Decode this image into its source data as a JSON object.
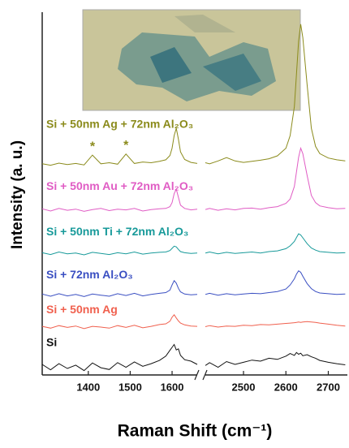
{
  "chart_data": {
    "type": "line",
    "x_label": "Raman Shift (cm⁻¹)",
    "y_label": "Intensity (a. u.)",
    "xlim": [
      1290,
      2745
    ],
    "x_break": [
      1660,
      2410
    ],
    "xticks": [
      1400,
      1500,
      1600,
      2500,
      2600,
      2700
    ],
    "ylim": [
      0,
      100
    ],
    "annotations": [
      {
        "text": "*"
      },
      {
        "text": "*"
      }
    ],
    "x": [
      1290,
      1310,
      1330,
      1350,
      1370,
      1390,
      1410,
      1430,
      1450,
      1470,
      1490,
      1510,
      1530,
      1550,
      1570,
      1585,
      1595,
      1600,
      1605,
      1610,
      1615,
      1620,
      1630,
      1645,
      1660,
      2410,
      2420,
      2440,
      2460,
      2480,
      2500,
      2520,
      2540,
      2560,
      2580,
      2600,
      2610,
      2620,
      2625,
      2630,
      2635,
      2640,
      2650,
      2660,
      2670,
      2680,
      2700,
      2720,
      2740
    ],
    "series": [
      {
        "name": "Si + 50nm Ag + 72nm Al₂O₃",
        "color": "#8b8b1c",
        "values": [
          58.2,
          57.8,
          58.4,
          58.0,
          58.3,
          57.9,
          60.6,
          58.2,
          58.5,
          58.1,
          60.9,
          58.3,
          58.7,
          58.5,
          58.9,
          59.3,
          60.5,
          62.5,
          66,
          68,
          65,
          61.5,
          59.4,
          58.6,
          58.3,
          58.5,
          58.2,
          59.0,
          59.9,
          59.0,
          58.6,
          58.9,
          59.2,
          59.6,
          60.4,
          62.5,
          66,
          74,
          83,
          92,
          96.7,
          93,
          80,
          68,
          63,
          61,
          59.8,
          59.3,
          59.0
        ]
      },
      {
        "name": "Si + 50nm Au + 72nm Al₂O₃",
        "color": "#e05cc4",
        "values": [
          45.8,
          45.2,
          45.9,
          45.4,
          45.7,
          45.1,
          45.6,
          45.9,
          45.3,
          45.7,
          45.5,
          45.9,
          45.2,
          45.6,
          45.8,
          45.9,
          46.4,
          47.5,
          50,
          51.2,
          49,
          46.8,
          45.9,
          45.5,
          45.7,
          45.6,
          45.9,
          45.4,
          45.8,
          45.5,
          45.9,
          46.0,
          45.7,
          46.1,
          46.4,
          47.3,
          48.5,
          52,
          56,
          60,
          62.5,
          61,
          55,
          49.5,
          47.5,
          46.6,
          46.1,
          45.8,
          45.9
        ]
      },
      {
        "name": "Si + 50nm Ti + 72nm Al₂O₃",
        "color": "#189a9a",
        "values": [
          33.7,
          33.2,
          33.9,
          33.4,
          33.6,
          33.1,
          33.8,
          33.5,
          33.2,
          33.7,
          33.4,
          33.9,
          33.3,
          33.6,
          33.8,
          33.9,
          34.3,
          34.9,
          35.5,
          35.3,
          34.6,
          34.0,
          33.7,
          33.5,
          33.6,
          33.6,
          33.9,
          33.4,
          33.8,
          33.5,
          33.7,
          33.9,
          33.6,
          34.0,
          34.2,
          34.8,
          35.6,
          36.8,
          37.9,
          38.9,
          38.6,
          37.8,
          36.2,
          35.0,
          34.4,
          34.0,
          33.8,
          33.6,
          33.7
        ]
      },
      {
        "name": "Si + 72nm Al₂O₃",
        "color": "#3a4fc2",
        "values": [
          22.3,
          21.7,
          22.4,
          21.8,
          22.2,
          21.6,
          22.3,
          22.0,
          21.7,
          22.4,
          21.9,
          22.5,
          21.8,
          22.2,
          22.5,
          22.7,
          23.4,
          24.8,
          26,
          25.3,
          23.9,
          22.9,
          22.3,
          22.1,
          22.2,
          22.2,
          22.5,
          22.0,
          22.4,
          22.1,
          22.3,
          22.5,
          22.4,
          22.7,
          23.0,
          23.7,
          24.8,
          26.5,
          27.8,
          28.7,
          28.3,
          27.2,
          25.2,
          23.8,
          23.0,
          22.6,
          22.4,
          22.2,
          22.3
        ]
      },
      {
        "name": "Si + 50nm Ag",
        "color": "#f0604e",
        "values": [
          13.4,
          12.9,
          13.6,
          13.1,
          13.5,
          12.8,
          13.4,
          13.2,
          12.9,
          13.6,
          13.1,
          13.7,
          13.0,
          13.4,
          13.9,
          14.1,
          14.8,
          15.9,
          16.6,
          15.7,
          14.9,
          14.3,
          13.8,
          13.5,
          13.4,
          13.3,
          13.6,
          13.2,
          13.5,
          13.4,
          13.7,
          13.6,
          13.9,
          13.8,
          14.0,
          14.2,
          14.3,
          14.4,
          14.5,
          14.6,
          14.5,
          14.6,
          14.7,
          14.6,
          14.5,
          14.3,
          14.0,
          13.7,
          13.5
        ]
      },
      {
        "name": "Si",
        "color": "#111111",
        "values": [
          2.9,
          1.4,
          3.1,
          1.8,
          2.7,
          1.2,
          3.3,
          2.0,
          1.5,
          3.4,
          2.1,
          3.6,
          2.4,
          3.1,
          4.0,
          5.2,
          6.8,
          7.6,
          8.4,
          6.9,
          7.2,
          5.4,
          4.2,
          3.8,
          2.9,
          2.6,
          3.4,
          2.1,
          3.7,
          2.9,
          3.5,
          4.1,
          3.8,
          4.6,
          4.3,
          5.2,
          5.9,
          5.4,
          6.2,
          5.7,
          6.0,
          5.3,
          5.6,
          5.0,
          4.6,
          4.0,
          3.5,
          3.1,
          2.8
        ]
      }
    ]
  }
}
